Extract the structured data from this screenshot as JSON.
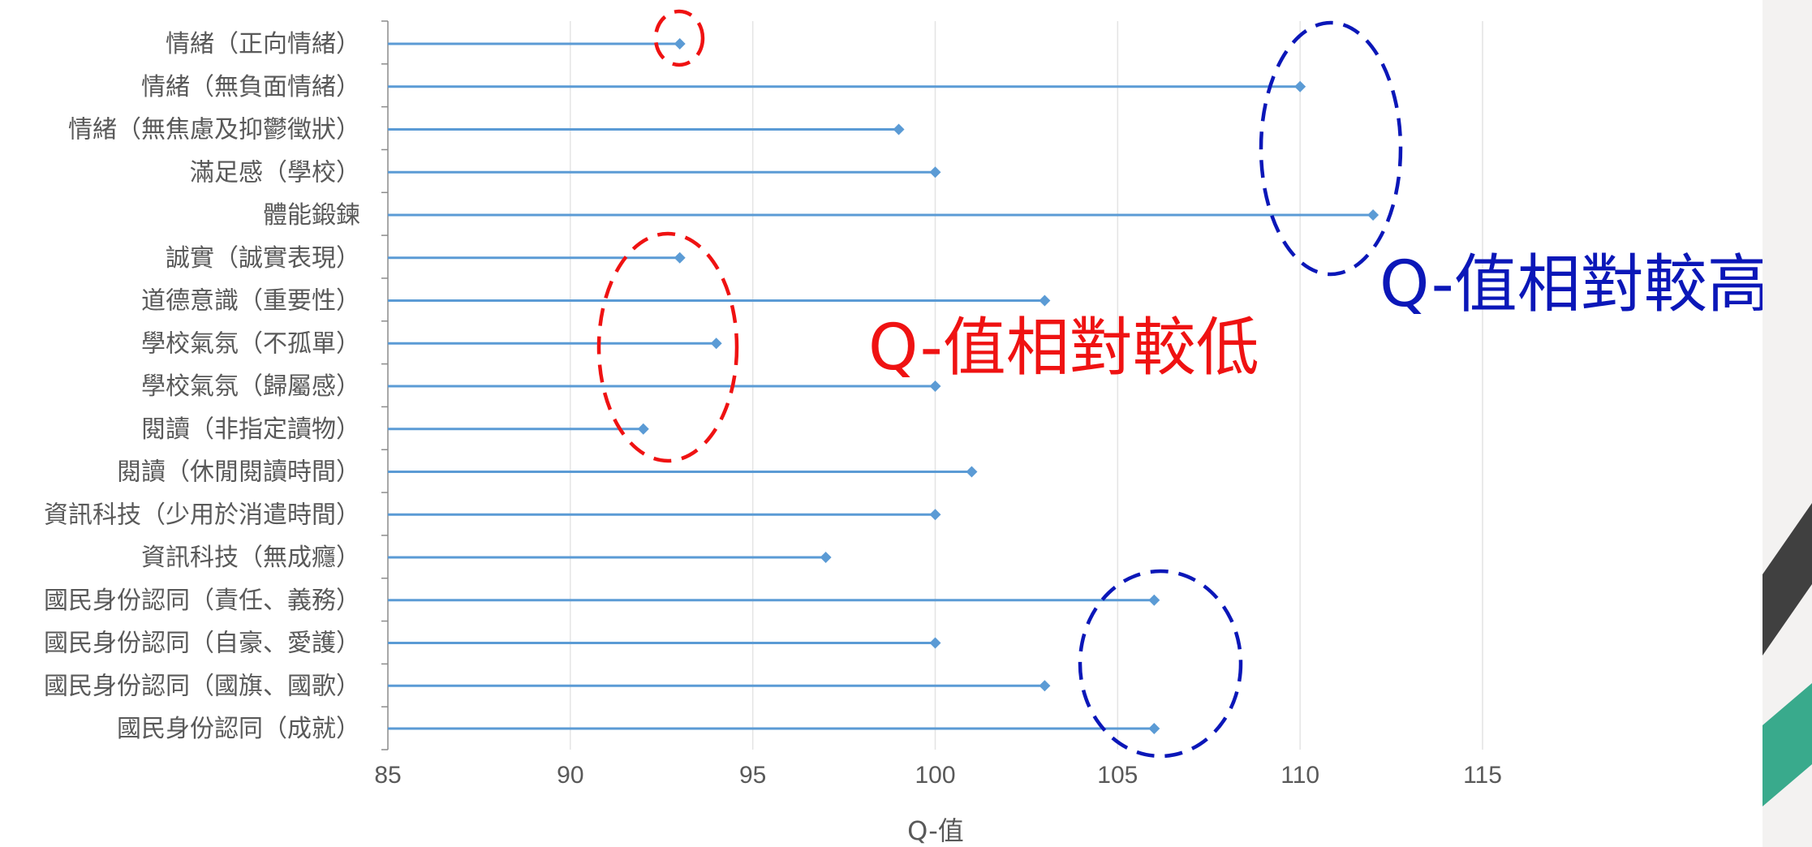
{
  "chart_data": {
    "type": "lollipop",
    "orientation": "horizontal",
    "title": "",
    "xlabel": "Q-值",
    "ylabel": "",
    "xlim": [
      85,
      117
    ],
    "xticks": [
      85,
      90,
      95,
      100,
      105,
      110,
      115
    ],
    "grid": true,
    "color": "#5b9bd5",
    "categories": [
      "情緒（正向情緒）",
      "情緒（無負面情緒）",
      "情緒（無焦慮及抑鬱徵狀）",
      "滿足感（學校）",
      "體能鍛鍊",
      "誠實（誠實表現）",
      "道德意識（重要性）",
      "學校氣氛（不孤單）",
      "學校氣氛（歸屬感）",
      "閱讀（非指定讀物）",
      "閱讀（休閒閱讀時間）",
      "資訊科技（少用於消遣時間）",
      "資訊科技（無成癮）",
      "國民身份認同（責任、義務）",
      "國民身份認同（自豪、愛護）",
      "國民身份認同（國旗、國歌）",
      "國民身份認同（成就）"
    ],
    "values": [
      93,
      110,
      99,
      100,
      112,
      93,
      103,
      94,
      100,
      92,
      101,
      100,
      97,
      106,
      100,
      103,
      106
    ],
    "annotations": [
      {
        "text": "Q-值相對較高",
        "color": "#0b17b8",
        "circled_categories": [
          "情緒（無負面情緒）",
          "體能鍛鍊"
        ]
      },
      {
        "text": "Q-值相對較低",
        "color": "#ef1212",
        "circled_categories": [
          "誠實（誠實表現）",
          "學校氣氛（不孤單）",
          "閱讀（非指定讀物）"
        ]
      }
    ],
    "extra_circles": [
      {
        "color": "#ef1212",
        "circled_categories": [
          "情緒（正向情緒）"
        ]
      },
      {
        "color": "#0b17b8",
        "circled_categories": [
          "國民身份認同（責任、義務）",
          "國民身份認同（國旗、國歌）",
          "國民身份認同（成就）"
        ]
      }
    ]
  }
}
